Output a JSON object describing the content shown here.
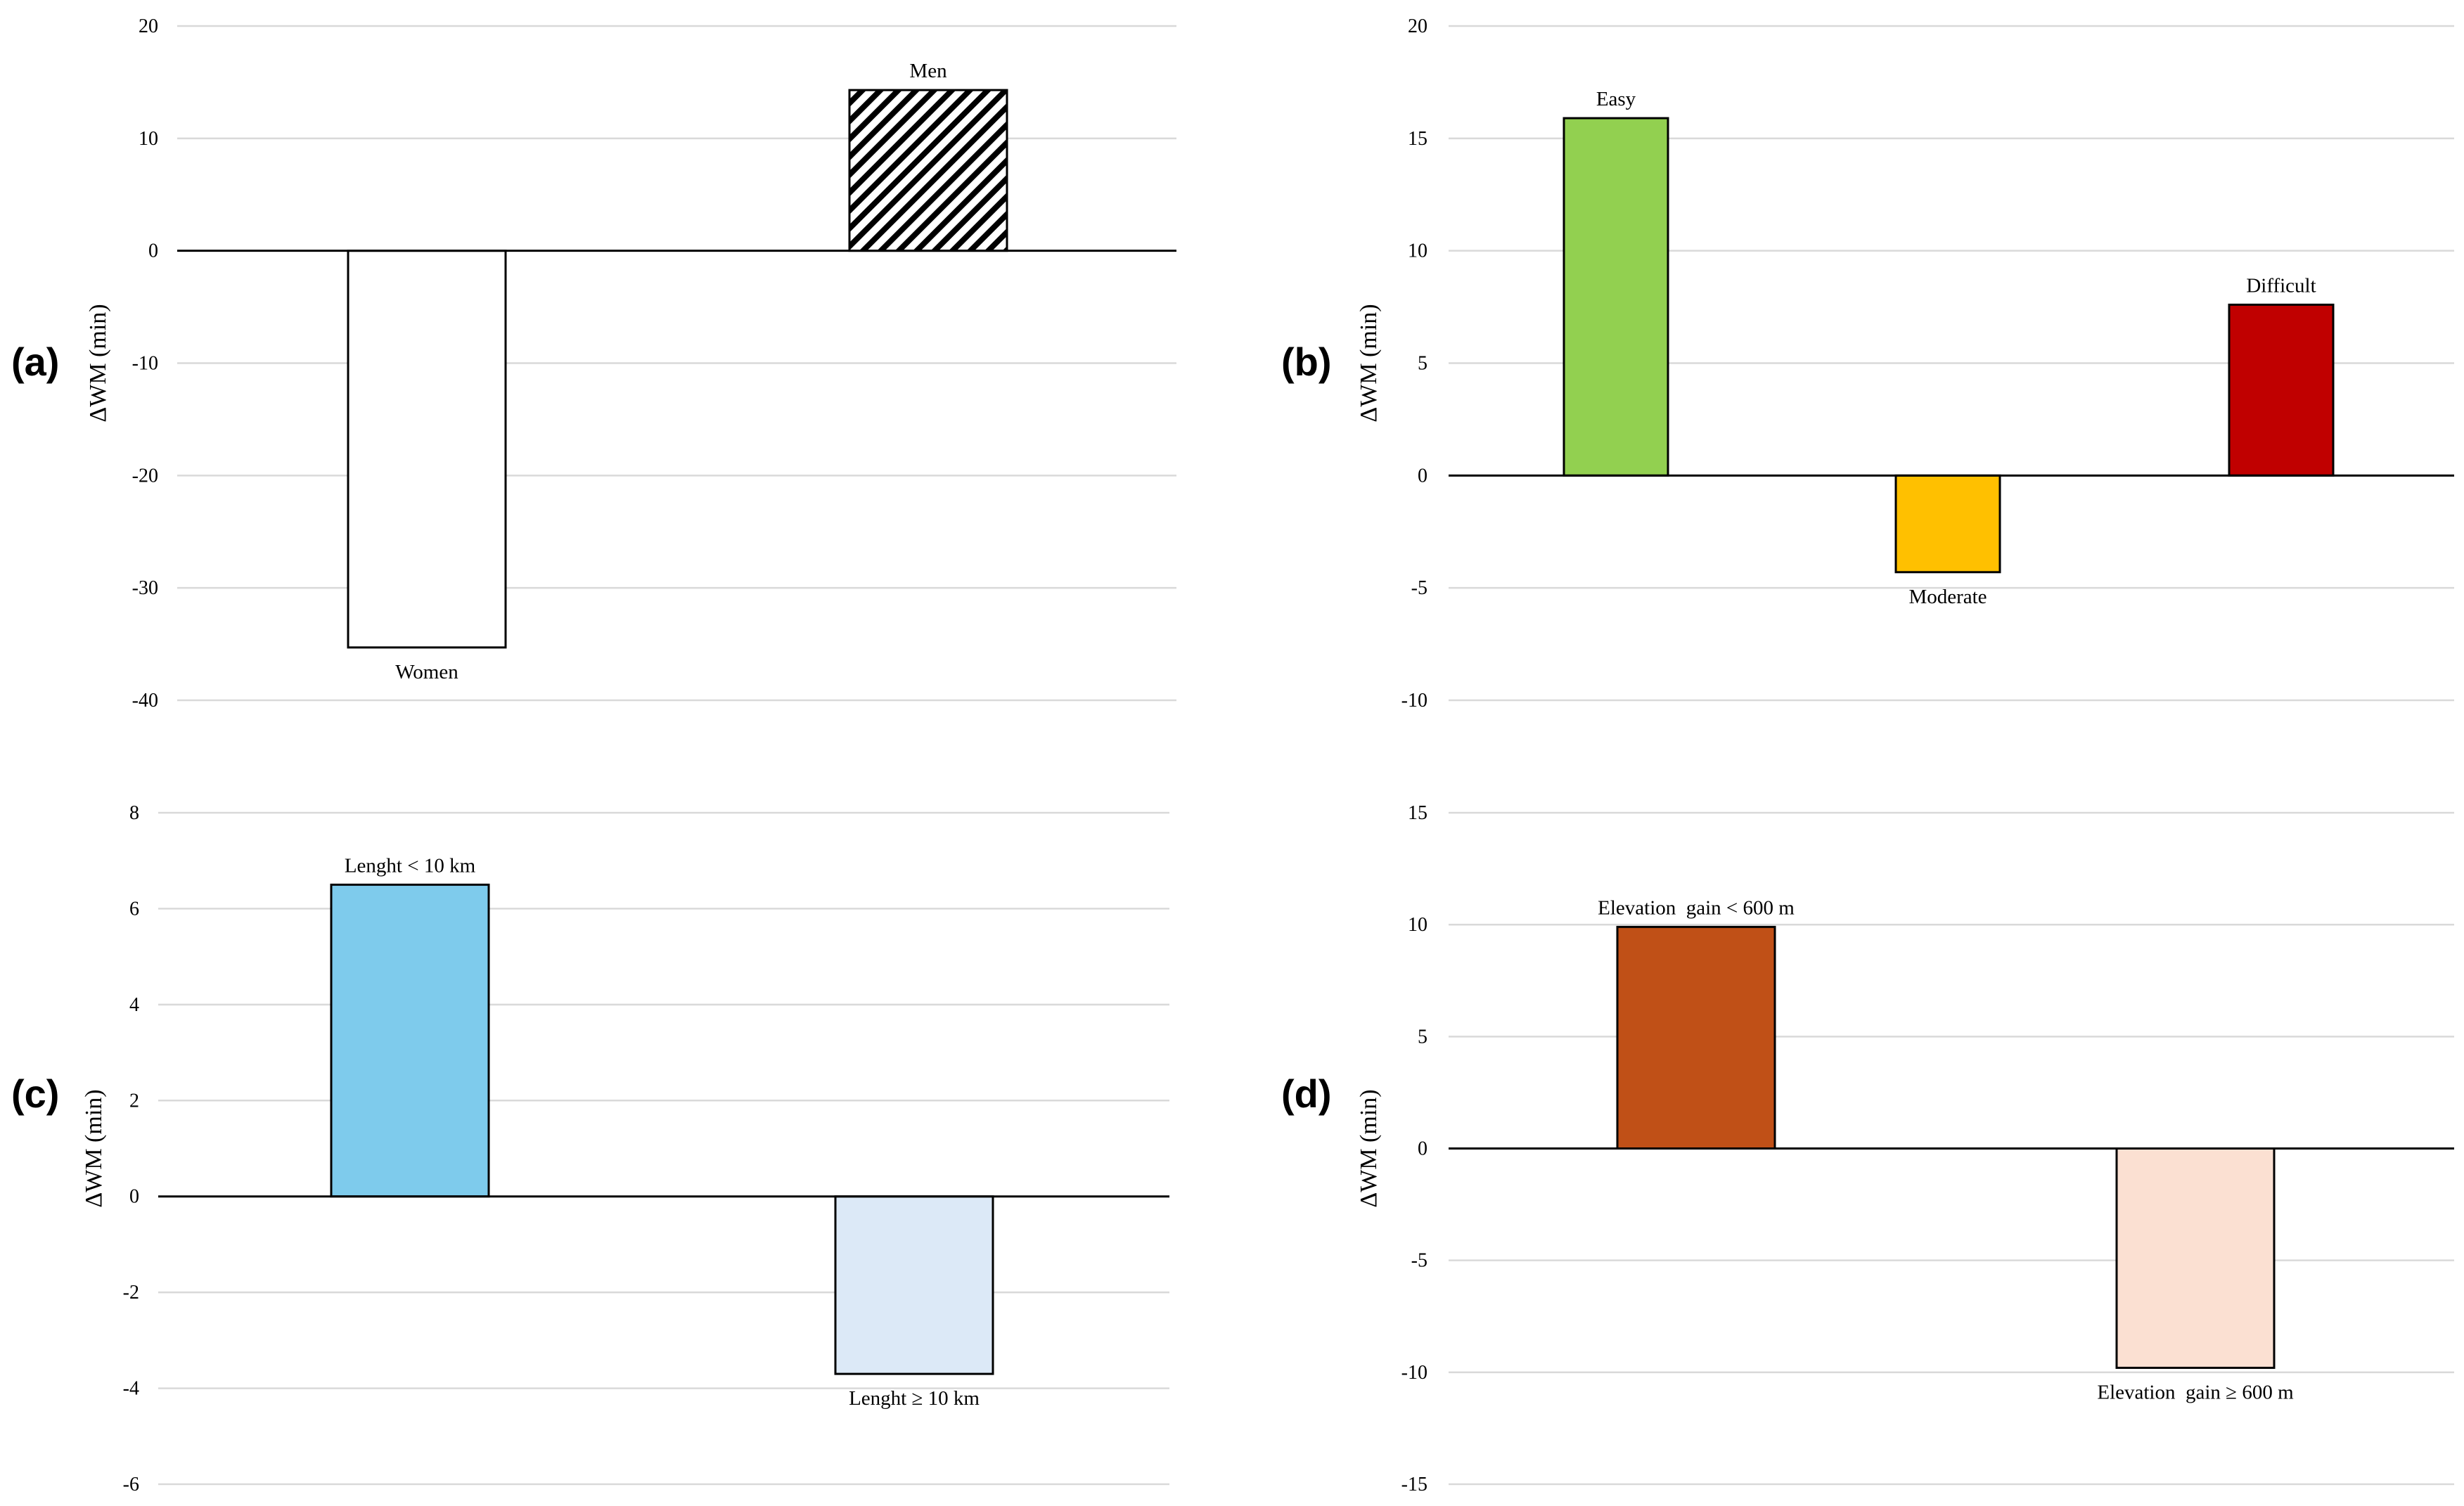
{
  "chart_data": [
    {
      "panel_label": "(a)",
      "type": "bar",
      "ylabel": "ΔWM (min)",
      "ylim": [
        -40,
        20
      ],
      "yticks": [
        20,
        10,
        0,
        -10,
        -20,
        -30,
        -40
      ],
      "ytick_labels": [
        "20",
        "10",
        "0",
        "-10",
        "-20",
        "-30",
        "-40"
      ],
      "grid": true,
      "categories": [
        "Women",
        "Men"
      ],
      "values": [
        -35.3,
        14.3
      ],
      "fills": [
        "#ffffff",
        "hatch"
      ]
    },
    {
      "panel_label": "(b)",
      "type": "bar",
      "ylabel": "ΔWM (min)",
      "ylim": [
        -10,
        20
      ],
      "yticks": [
        20,
        15,
        10,
        5,
        0,
        -5,
        -10
      ],
      "ytick_labels": [
        "20",
        "15",
        "10",
        "5",
        "0",
        "-5",
        "-10"
      ],
      "grid": true,
      "categories": [
        "Easy",
        "Moderate",
        "Difficult"
      ],
      "values": [
        15.9,
        -4.3,
        7.6
      ],
      "fills": [
        "#92d050",
        "#ffc000",
        "#c00000"
      ]
    },
    {
      "panel_label": "(c)",
      "type": "bar",
      "ylabel": "ΔWM (min)",
      "ylim": [
        -6,
        8
      ],
      "yticks": [
        8,
        6,
        4,
        2,
        0,
        -2,
        -4,
        -6
      ],
      "ytick_labels": [
        "8",
        "6",
        "4",
        "2",
        "0",
        "-2",
        "-4",
        "-6"
      ],
      "grid": true,
      "categories": [
        "Lenght < 10 km",
        "Lenght ≥ 10 km"
      ],
      "values": [
        6.5,
        -3.7
      ],
      "fills": [
        "#7ecbec",
        "#dce9f7"
      ]
    },
    {
      "panel_label": "(d)",
      "type": "bar",
      "ylabel": "ΔWM (min)",
      "ylim": [
        -15,
        15
      ],
      "yticks": [
        15,
        10,
        5,
        0,
        -5,
        -10,
        -15
      ],
      "ytick_labels": [
        "15",
        "10",
        "5",
        "0",
        "-5",
        "-10",
        "-15"
      ],
      "grid": true,
      "categories": [
        "Elevation  gain < 600 m",
        "Elevation  gain ≥ 600 m"
      ],
      "values": [
        9.9,
        -9.8
      ],
      "fills": [
        "#c05017",
        "#fbe0d2"
      ]
    }
  ]
}
